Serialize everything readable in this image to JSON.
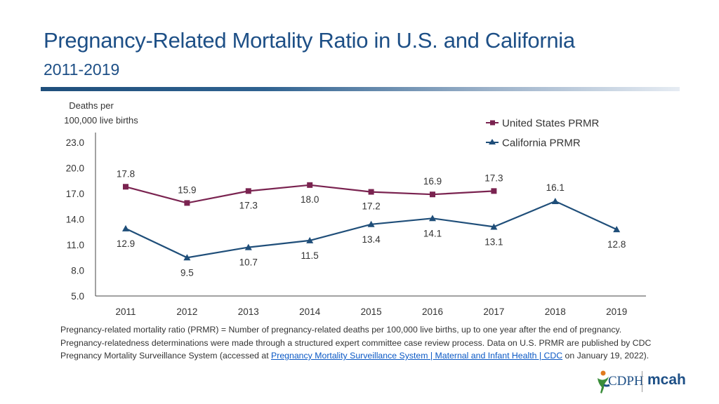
{
  "header": {
    "title": "Pregnancy-Related Mortality Ratio in U.S. and California",
    "subtitle": "2011-2019"
  },
  "chart_data": {
    "type": "line",
    "ylabel_line1": "Deaths per",
    "ylabel_line2": "100,000 live births",
    "ylim": [
      5.0,
      23.0
    ],
    "yticks": [
      "23.0",
      "20.0",
      "17.0",
      "14.0",
      "11.0",
      "8.0",
      "5.0"
    ],
    "categories": [
      "2011",
      "2012",
      "2013",
      "2014",
      "2015",
      "2016",
      "2017",
      "2018",
      "2019"
    ],
    "series": [
      {
        "name": "United States PRMR",
        "color": "#7a2350",
        "marker": "square",
        "values": [
          17.8,
          15.9,
          17.3,
          18.0,
          17.2,
          16.9,
          17.3,
          null,
          null
        ],
        "labels": [
          "17.8",
          "15.9",
          "17.3",
          "18.0",
          "17.2",
          "16.9",
          "17.3",
          "",
          ""
        ]
      },
      {
        "name": "California PRMR",
        "color": "#1f4e79",
        "marker": "triangle",
        "values": [
          12.9,
          9.5,
          10.7,
          11.5,
          13.4,
          14.1,
          13.1,
          16.1,
          12.8
        ],
        "labels": [
          "12.9",
          "9.5",
          "10.7",
          "11.5",
          "13.4",
          "14.1",
          "13.1",
          "16.1",
          "12.8"
        ]
      }
    ],
    "legend": "top-right"
  },
  "footnote": {
    "text": "Pregnancy-related mortality ratio (PRMR) = Number of pregnancy-related deaths per 100,000 live births, up to one year after the end of pregnancy. Pregnancy-relatedness determinations were made through a structured expert committee case review process. Data on U.S. PRMR are published by CDC Pregnancy Mortality Surveillance System (accessed at ",
    "link": "Pregnancy Mortality Surveillance System | Maternal and Infant Health | CDC",
    "tail": " on January 19, 2022)."
  },
  "logos": {
    "cdph": "CDPH",
    "mcah": "mcah"
  },
  "colors": {
    "title": "#1d4f86",
    "us": "#7a2350",
    "ca": "#1f4e79"
  }
}
